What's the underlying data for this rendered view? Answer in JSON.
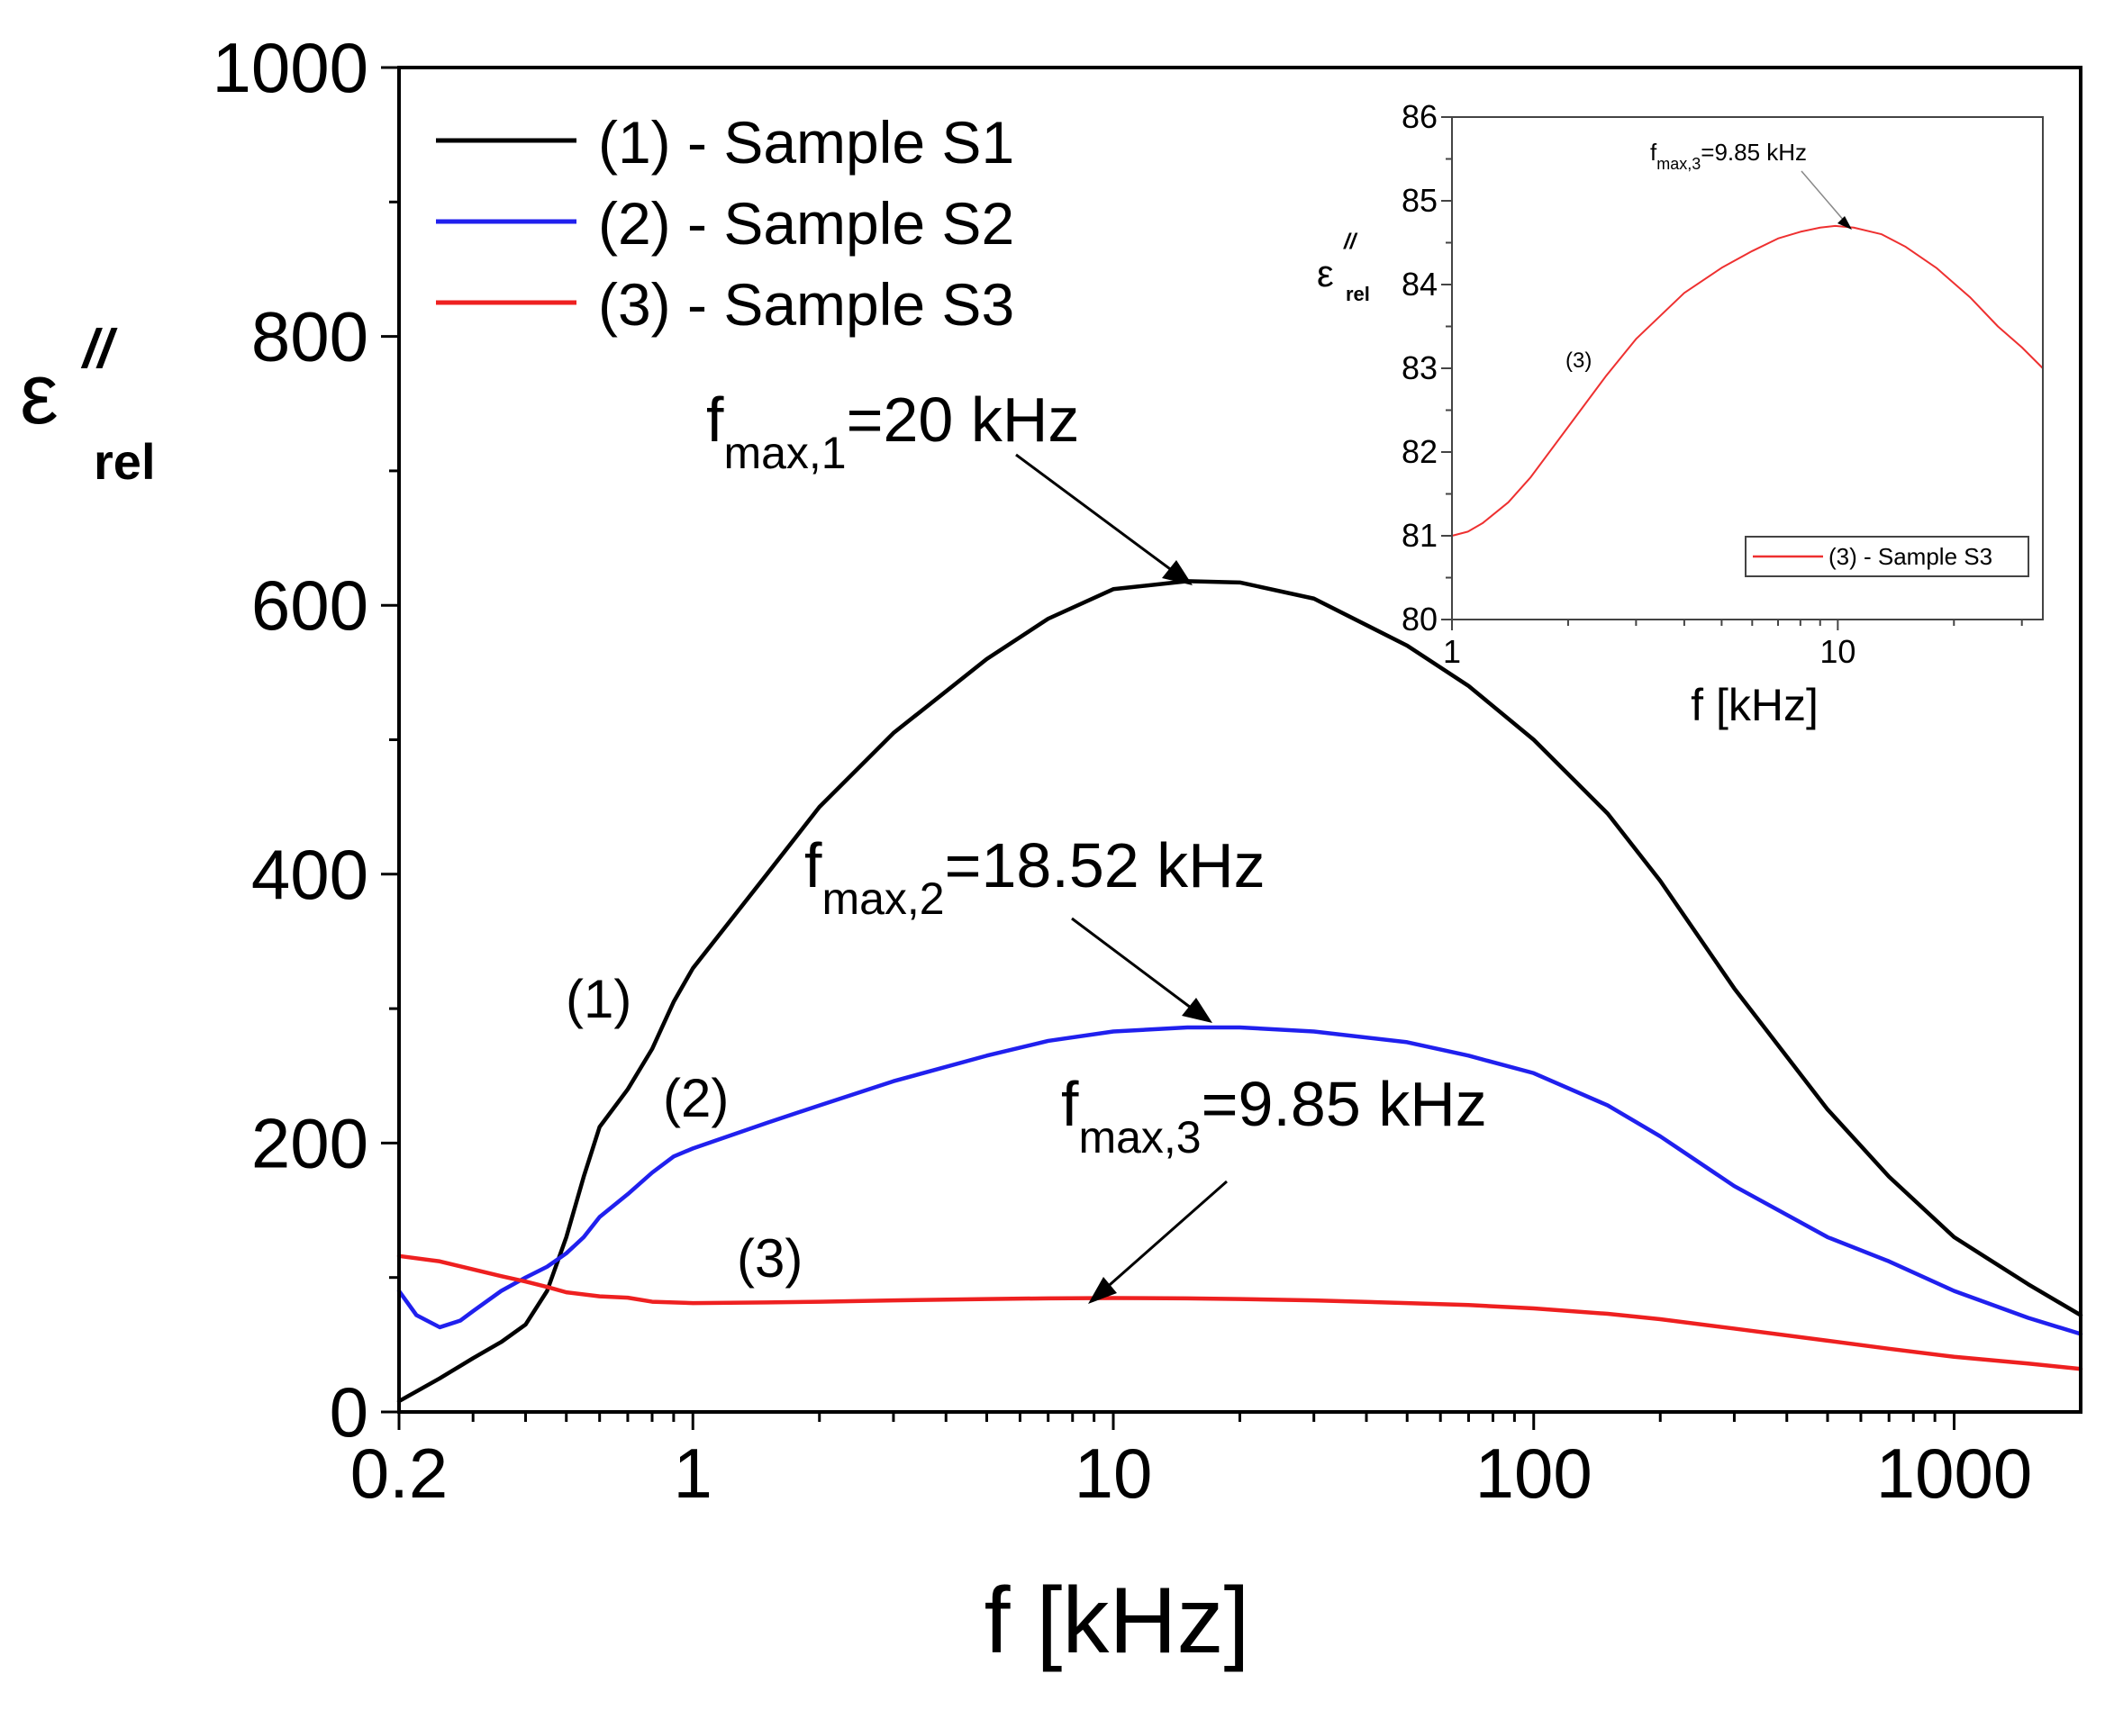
{
  "chart_data": [
    {
      "type": "line",
      "x_scale": "log",
      "xlabel": "f [kHz]",
      "ylabel": "ε″rel",
      "ylabel_main": "ε",
      "ylabel_sup": "//",
      "ylabel_sub": "rel",
      "xlim": [
        0.2,
        2000
      ],
      "ylim": [
        0,
        1000
      ],
      "x_ticks": [
        {
          "value": 0.2,
          "label": "0.2"
        },
        {
          "value": 1,
          "label": "1"
        },
        {
          "value": 10,
          "label": "10"
        },
        {
          "value": 100,
          "label": "100"
        },
        {
          "value": 1000,
          "label": "1000"
        }
      ],
      "y_ticks": [
        {
          "value": 0,
          "label": "0"
        },
        {
          "value": 200,
          "label": "200"
        },
        {
          "value": 400,
          "label": "400"
        },
        {
          "value": 600,
          "label": "600"
        },
        {
          "value": 800,
          "label": "800"
        },
        {
          "value": 1000,
          "label": "1000"
        }
      ],
      "legend_position": "top-left",
      "series": [
        {
          "name": "(1) - Sample S1",
          "label": "(1)",
          "color": "#000000",
          "x": [
            0.2,
            0.25,
            0.3,
            0.35,
            0.4,
            0.45,
            0.5,
            0.55,
            0.6,
            0.7,
            0.8,
            0.9,
            1,
            1.5,
            2,
            3,
            5,
            7,
            10,
            15,
            20,
            30,
            50,
            70,
            100,
            150,
            200,
            300,
            500,
            700,
            1000,
            1500,
            2000
          ],
          "y": [
            8,
            25,
            40,
            52,
            65,
            90,
            130,
            175,
            212,
            240,
            270,
            305,
            330,
            400,
            450,
            505,
            560,
            590,
            612,
            618,
            617,
            605,
            570,
            540,
            500,
            445,
            395,
            315,
            225,
            175,
            130,
            95,
            72
          ]
        },
        {
          "name": "(2) - Sample S2",
          "label": "(2)",
          "color": "#2020ee",
          "x": [
            0.2,
            0.22,
            0.25,
            0.28,
            0.3,
            0.35,
            0.4,
            0.45,
            0.5,
            0.55,
            0.6,
            0.7,
            0.8,
            0.9,
            1,
            1.5,
            2,
            3,
            5,
            7,
            10,
            15,
            20,
            30,
            50,
            70,
            100,
            150,
            200,
            300,
            500,
            700,
            1000,
            1500,
            2000
          ],
          "y": [
            90,
            72,
            63,
            68,
            75,
            90,
            100,
            108,
            118,
            130,
            145,
            162,
            178,
            190,
            196,
            215,
            228,
            246,
            265,
            276,
            283,
            286,
            286,
            283,
            275,
            265,
            252,
            228,
            205,
            168,
            130,
            112,
            90,
            70,
            58
          ]
        },
        {
          "name": "(3) - Sample S3",
          "label": "(3)",
          "color": "#ee2020",
          "x": [
            0.2,
            0.25,
            0.3,
            0.35,
            0.4,
            0.45,
            0.5,
            0.6,
            0.7,
            0.8,
            1,
            1.5,
            2,
            3,
            5,
            7,
            10,
            15,
            20,
            30,
            50,
            70,
            100,
            150,
            200,
            300,
            500,
            700,
            1000,
            1500,
            2000
          ],
          "y": [
            116,
            112,
            106,
            101,
            97,
            93,
            89,
            86,
            85,
            82,
            81,
            81.5,
            82,
            83,
            84,
            84.5,
            84.7,
            84.5,
            84,
            83,
            81,
            79.5,
            77,
            73,
            69,
            62,
            53,
            47,
            41,
            36,
            32
          ]
        }
      ],
      "annotations": [
        {
          "base": "f",
          "sub": "max,1",
          "text": "=20 kHz",
          "x": 20,
          "y": 618
        },
        {
          "base": "f",
          "sub": "max,2",
          "text": "=18.52 kHz",
          "x": 18.52,
          "y": 286
        },
        {
          "base": "f",
          "sub": "max,3",
          "text": "=9.85 kHz",
          "x": 9.85,
          "y": 84.7
        }
      ]
    },
    {
      "type": "line",
      "position": "top-right inset",
      "x_scale": "log",
      "xlabel": "f [kHz]",
      "ylabel_main": "ε",
      "ylabel_sup": "//",
      "ylabel_sub": "rel",
      "xlim": [
        1,
        34
      ],
      "ylim": [
        80,
        86
      ],
      "x_ticks": [
        {
          "value": 1,
          "label": "1"
        },
        {
          "value": 10,
          "label": "10"
        }
      ],
      "y_ticks": [
        {
          "value": 80,
          "label": "80"
        },
        {
          "value": 81,
          "label": "81"
        },
        {
          "value": 82,
          "label": "82"
        },
        {
          "value": 83,
          "label": "83"
        },
        {
          "value": 84,
          "label": "84"
        },
        {
          "value": 85,
          "label": "85"
        },
        {
          "value": 86,
          "label": "86"
        }
      ],
      "legend_position": "bottom-right",
      "series": [
        {
          "name": "(3) - Sample S3",
          "label": "(3)",
          "color": "#ee3030",
          "x": [
            1,
            1.1,
            1.2,
            1.4,
            1.6,
            2,
            2.5,
            3,
            4,
            5,
            6,
            7,
            8,
            9,
            9.85,
            11,
            13,
            15,
            18,
            22,
            26,
            30,
            34
          ],
          "y": [
            81.0,
            81.05,
            81.15,
            81.4,
            81.7,
            82.3,
            82.9,
            83.35,
            83.9,
            84.2,
            84.4,
            84.55,
            84.63,
            84.68,
            84.7,
            84.68,
            84.6,
            84.45,
            84.2,
            83.85,
            83.5,
            83.25,
            83.0
          ]
        }
      ],
      "annotations": [
        {
          "base": "f",
          "sub": "max,3",
          "text": "=9.85 kHz",
          "x": 9.85,
          "y": 84.7
        }
      ]
    }
  ]
}
